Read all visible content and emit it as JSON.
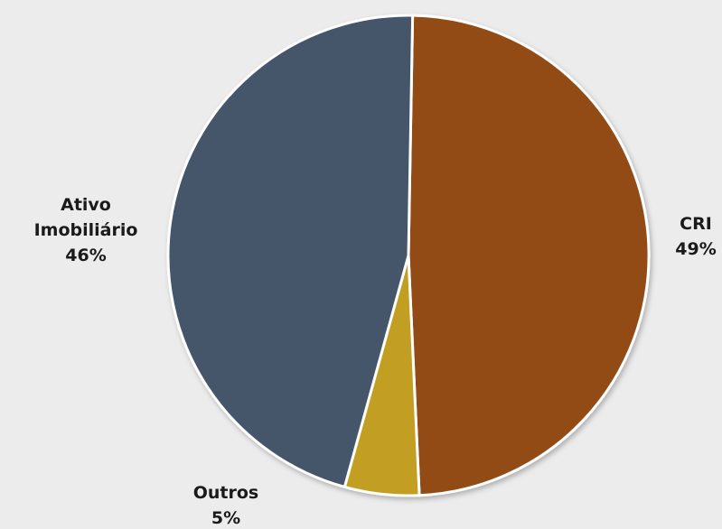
{
  "chart_data": {
    "type": "pie",
    "slices": [
      {
        "label": "CRI",
        "value": 49,
        "value_label": "49%",
        "color": "#934c12"
      },
      {
        "label": "Outros",
        "value": 5,
        "value_label": "5%",
        "color": "#c29f22"
      },
      {
        "label": "Ativo Imobiliário",
        "label_lines": [
          "Ativo",
          "Imobiliário"
        ],
        "value": 46,
        "value_label": "46%",
        "color": "#44546a"
      }
    ],
    "start_angle_deg": 1,
    "direction": "clockwise",
    "slice_border_color": "#ffffff",
    "background_color": "#ececec"
  }
}
